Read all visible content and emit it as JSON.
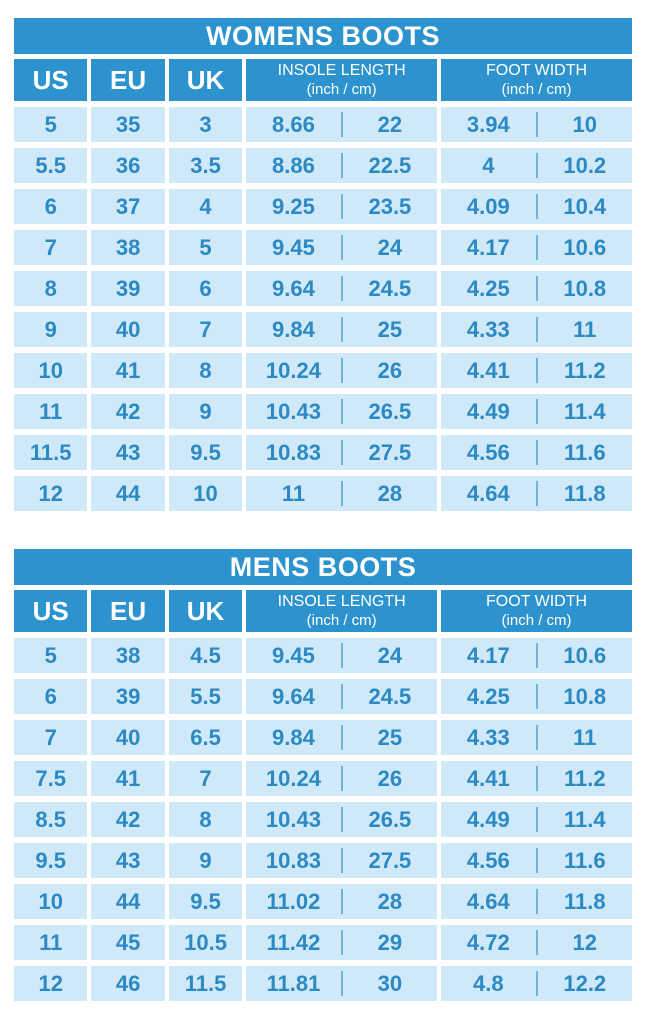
{
  "colors": {
    "page_bg": "#ffffff",
    "header_bg": "#2d93ce",
    "header_text": "#ffffff",
    "row_bg": "#cfe9f8",
    "value_text": "#2b89c4",
    "divider": "#6fb4dc"
  },
  "header": {
    "us": "US",
    "eu": "EU",
    "uk": "UK",
    "insole_main": "INSOLE LENGTH",
    "insole_sub": "(inch / cm)",
    "width_main": "FOOT WIDTH",
    "width_sub": "(inch / cm)"
  },
  "chart_data": [
    {
      "type": "table",
      "title": "WOMENS BOOTS",
      "columns": [
        "US",
        "EU",
        "UK",
        "INSOLE LENGTH (inch)",
        "INSOLE LENGTH (cm)",
        "FOOT WIDTH (inch)",
        "FOOT WIDTH (cm)"
      ],
      "rows": [
        [
          "5",
          "35",
          "3",
          "8.66",
          "22",
          "3.94",
          "10"
        ],
        [
          "5.5",
          "36",
          "3.5",
          "8.86",
          "22.5",
          "4",
          "10.2"
        ],
        [
          "6",
          "37",
          "4",
          "9.25",
          "23.5",
          "4.09",
          "10.4"
        ],
        [
          "7",
          "38",
          "5",
          "9.45",
          "24",
          "4.17",
          "10.6"
        ],
        [
          "8",
          "39",
          "6",
          "9.64",
          "24.5",
          "4.25",
          "10.8"
        ],
        [
          "9",
          "40",
          "7",
          "9.84",
          "25",
          "4.33",
          "11"
        ],
        [
          "10",
          "41",
          "8",
          "10.24",
          "26",
          "4.41",
          "11.2"
        ],
        [
          "11",
          "42",
          "9",
          "10.43",
          "26.5",
          "4.49",
          "11.4"
        ],
        [
          "11.5",
          "43",
          "9.5",
          "10.83",
          "27.5",
          "4.56",
          "11.6"
        ],
        [
          "12",
          "44",
          "10",
          "11",
          "28",
          "4.64",
          "11.8"
        ]
      ]
    },
    {
      "type": "table",
      "title": "MENS BOOTS",
      "columns": [
        "US",
        "EU",
        "UK",
        "INSOLE LENGTH (inch)",
        "INSOLE LENGTH (cm)",
        "FOOT WIDTH (inch)",
        "FOOT WIDTH (cm)"
      ],
      "rows": [
        [
          "5",
          "38",
          "4.5",
          "9.45",
          "24",
          "4.17",
          "10.6"
        ],
        [
          "6",
          "39",
          "5.5",
          "9.64",
          "24.5",
          "4.25",
          "10.8"
        ],
        [
          "7",
          "40",
          "6.5",
          "9.84",
          "25",
          "4.33",
          "11"
        ],
        [
          "7.5",
          "41",
          "7",
          "10.24",
          "26",
          "4.41",
          "11.2"
        ],
        [
          "8.5",
          "42",
          "8",
          "10.43",
          "26.5",
          "4.49",
          "11.4"
        ],
        [
          "9.5",
          "43",
          "9",
          "10.83",
          "27.5",
          "4.56",
          "11.6"
        ],
        [
          "10",
          "44",
          "9.5",
          "11.02",
          "28",
          "4.64",
          "11.8"
        ],
        [
          "11",
          "45",
          "10.5",
          "11.42",
          "29",
          "4.72",
          "12"
        ],
        [
          "12",
          "46",
          "11.5",
          "11.81",
          "30",
          "4.8",
          "12.2"
        ]
      ]
    }
  ]
}
